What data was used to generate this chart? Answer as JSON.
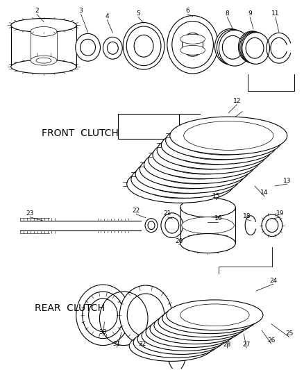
{
  "bg_color": "#ffffff",
  "line_color": "#000000",
  "labels": {
    "front_clutch": "FRONT  CLUTCH",
    "rear_clutch": "REAR  CLUTCH"
  },
  "figsize": [
    4.38,
    5.33
  ],
  "dpi": 100
}
